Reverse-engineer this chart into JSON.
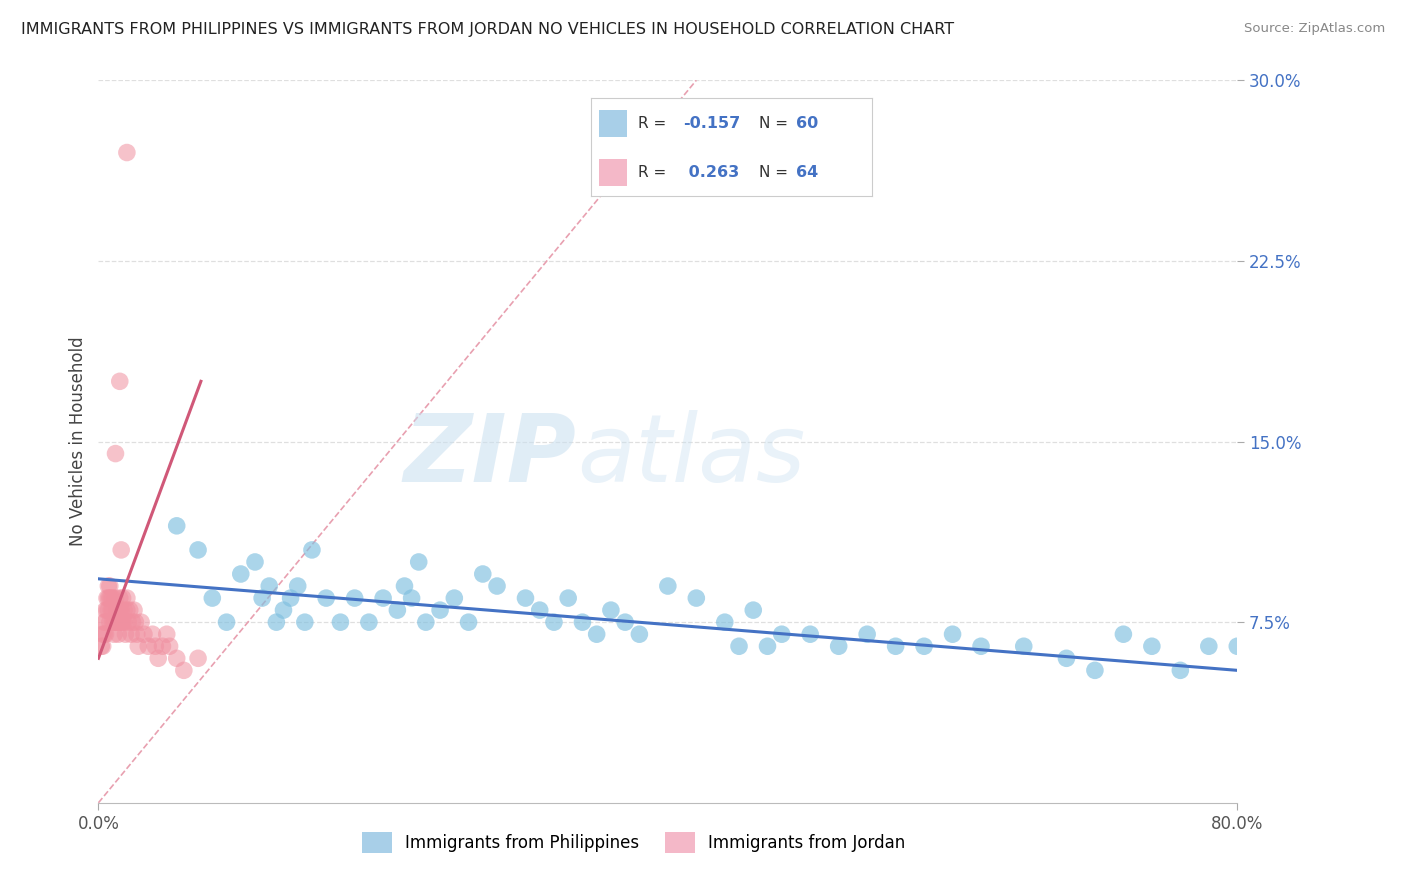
{
  "title": "IMMIGRANTS FROM PHILIPPINES VS IMMIGRANTS FROM JORDAN NO VEHICLES IN HOUSEHOLD CORRELATION CHART",
  "source": "Source: ZipAtlas.com",
  "ylabel": "No Vehicles in Household",
  "xlim": [
    0.0,
    0.8
  ],
  "ylim": [
    0.0,
    0.3
  ],
  "ytick_values": [
    0.075,
    0.15,
    0.225,
    0.3
  ],
  "ytick_labels": [
    "7.5%",
    "15.0%",
    "22.5%",
    "30.0%"
  ],
  "xtick_values": [
    0.0,
    0.8
  ],
  "xtick_labels": [
    "0.0%",
    "80.0%"
  ],
  "philippines_scatter_x": [
    0.055,
    0.07,
    0.08,
    0.09,
    0.1,
    0.11,
    0.115,
    0.12,
    0.125,
    0.13,
    0.135,
    0.14,
    0.145,
    0.15,
    0.16,
    0.17,
    0.18,
    0.19,
    0.2,
    0.21,
    0.215,
    0.22,
    0.225,
    0.23,
    0.24,
    0.25,
    0.26,
    0.27,
    0.28,
    0.3,
    0.31,
    0.32,
    0.33,
    0.34,
    0.35,
    0.36,
    0.37,
    0.38,
    0.4,
    0.42,
    0.44,
    0.45,
    0.46,
    0.47,
    0.48,
    0.5,
    0.52,
    0.54,
    0.56,
    0.58,
    0.6,
    0.62,
    0.65,
    0.68,
    0.7,
    0.72,
    0.74,
    0.76,
    0.78,
    0.8
  ],
  "philippines_scatter_y": [
    0.115,
    0.105,
    0.085,
    0.075,
    0.095,
    0.1,
    0.085,
    0.09,
    0.075,
    0.08,
    0.085,
    0.09,
    0.075,
    0.105,
    0.085,
    0.075,
    0.085,
    0.075,
    0.085,
    0.08,
    0.09,
    0.085,
    0.1,
    0.075,
    0.08,
    0.085,
    0.075,
    0.095,
    0.09,
    0.085,
    0.08,
    0.075,
    0.085,
    0.075,
    0.07,
    0.08,
    0.075,
    0.07,
    0.09,
    0.085,
    0.075,
    0.065,
    0.08,
    0.065,
    0.07,
    0.07,
    0.065,
    0.07,
    0.065,
    0.065,
    0.07,
    0.065,
    0.065,
    0.06,
    0.055,
    0.07,
    0.065,
    0.055,
    0.065,
    0.065
  ],
  "jordan_scatter_x": [
    0.002,
    0.003,
    0.003,
    0.004,
    0.004,
    0.005,
    0.005,
    0.005,
    0.006,
    0.006,
    0.007,
    0.007,
    0.007,
    0.008,
    0.008,
    0.008,
    0.009,
    0.009,
    0.01,
    0.01,
    0.01,
    0.011,
    0.011,
    0.012,
    0.012,
    0.013,
    0.013,
    0.014,
    0.014,
    0.015,
    0.015,
    0.016,
    0.016,
    0.017,
    0.017,
    0.018,
    0.018,
    0.019,
    0.02,
    0.02,
    0.021,
    0.022,
    0.023,
    0.024,
    0.025,
    0.026,
    0.027,
    0.028,
    0.03,
    0.032,
    0.035,
    0.038,
    0.04,
    0.042,
    0.045,
    0.048,
    0.05,
    0.055,
    0.06,
    0.07,
    0.012,
    0.015,
    0.016,
    0.02
  ],
  "jordan_scatter_y": [
    0.065,
    0.07,
    0.065,
    0.07,
    0.075,
    0.08,
    0.075,
    0.07,
    0.085,
    0.08,
    0.085,
    0.09,
    0.08,
    0.085,
    0.09,
    0.075,
    0.085,
    0.08,
    0.085,
    0.075,
    0.08,
    0.075,
    0.07,
    0.085,
    0.075,
    0.08,
    0.075,
    0.07,
    0.075,
    0.085,
    0.08,
    0.075,
    0.08,
    0.085,
    0.075,
    0.08,
    0.075,
    0.07,
    0.085,
    0.08,
    0.075,
    0.08,
    0.07,
    0.075,
    0.08,
    0.075,
    0.07,
    0.065,
    0.075,
    0.07,
    0.065,
    0.07,
    0.065,
    0.06,
    0.065,
    0.07,
    0.065,
    0.06,
    0.055,
    0.06,
    0.145,
    0.175,
    0.105,
    0.27
  ],
  "philippines_line_x": [
    0.0,
    0.8
  ],
  "philippines_line_y": [
    0.093,
    0.055
  ],
  "jordan_line_x": [
    0.0,
    0.072
  ],
  "jordan_line_y": [
    0.06,
    0.175
  ],
  "diagonal_line_x": [
    0.0,
    0.42
  ],
  "diagonal_line_y": [
    0.0,
    0.3
  ],
  "philippines_color": "#7fbfdf",
  "jordan_color": "#f090a0",
  "philippines_line_color": "#4472c4",
  "jordan_line_color": "#d05878",
  "diagonal_color": "#e8a0b0",
  "watermark_zip": "ZIP",
  "watermark_atlas": "atlas",
  "background_color": "#ffffff",
  "grid_color": "#d8d8d8",
  "legend_philippines_color": "#a8cfe8",
  "legend_jordan_color": "#f4b8c8",
  "r_value_color": "#4472c4",
  "legend_r1": "-0.157",
  "legend_n1": "60",
  "legend_r2": "0.263",
  "legend_n2": "64"
}
